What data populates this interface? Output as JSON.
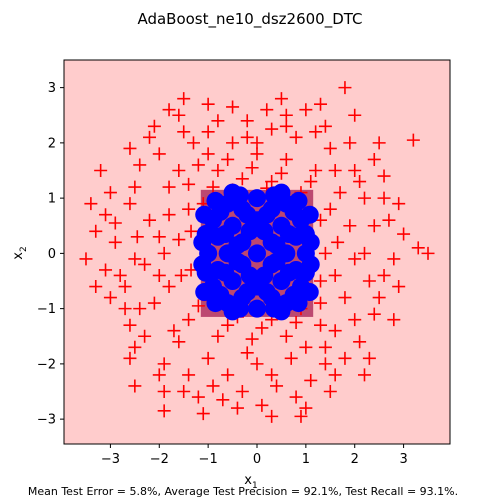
{
  "chart_data": {
    "type": "scatter",
    "title": "AdaBoost_ne10_dsz2600_DTC",
    "xlabel": "x",
    "xlabel_sub": "1",
    "ylabel": "x",
    "ylabel_sub": "2",
    "xlim": [
      -3.95,
      3.95
    ],
    "ylim": [
      -3.45,
      3.5
    ],
    "xticks": [
      -3,
      -2,
      -1,
      0,
      1,
      2,
      3
    ],
    "yticks": [
      -3,
      -2,
      -1,
      0,
      1,
      2,
      3
    ],
    "tick_labels_x": [
      "−3",
      "−2",
      "−1",
      "0",
      "1",
      "2",
      "3"
    ],
    "tick_labels_y": [
      "−3",
      "−2",
      "−1",
      "0",
      "1",
      "2",
      "3"
    ],
    "background_region_color": "#ffcccc",
    "inner_region_color": "#b03060",
    "series": [
      {
        "marker": "plus",
        "color": "#ff0000",
        "points": [
          [
            -3.5,
            -0.1
          ],
          [
            -3.4,
            0.9
          ],
          [
            -3.2,
            1.5
          ],
          [
            -3.0,
            -0.8
          ],
          [
            -3.3,
            0.4
          ],
          [
            -2.9,
            0.55
          ],
          [
            -2.6,
            -1.9
          ],
          [
            -2.5,
            -2.4
          ],
          [
            -2.2,
            2.1
          ],
          [
            -1.9,
            -2.85
          ],
          [
            -1.9,
            -2.5
          ],
          [
            -1.8,
            2.6
          ],
          [
            -1.5,
            -2.5
          ],
          [
            -1.0,
            2.7
          ],
          [
            -0.6,
            -2.2
          ],
          [
            -0.2,
            2.4
          ],
          [
            0.5,
            2.8
          ],
          [
            0.9,
            -2.95
          ],
          [
            1.2,
            2.2
          ],
          [
            1.8,
            3.0
          ],
          [
            2.4,
            1.7
          ],
          [
            3.2,
            2.05
          ],
          [
            3.0,
            0.35
          ],
          [
            3.5,
            0.0
          ],
          [
            2.8,
            -0.1
          ],
          [
            2.8,
            -1.2
          ],
          [
            2.4,
            -1.1
          ],
          [
            2.3,
            -1.9
          ],
          [
            1.6,
            -2.2
          ],
          [
            1.5,
            -2.5
          ],
          [
            0.1,
            -2.75
          ],
          [
            -0.4,
            -2.8
          ],
          [
            -1.1,
            -2.9
          ],
          [
            -2.3,
            -1.5
          ],
          [
            -2.6,
            -1.3
          ],
          [
            -2.9,
            0.2
          ],
          [
            -2.8,
            -0.4
          ],
          [
            -2.5,
            1.2
          ],
          [
            -2.0,
            1.8
          ],
          [
            -1.5,
            2.2
          ],
          [
            -0.5,
            2.0
          ],
          [
            0.3,
            2.25
          ],
          [
            0.8,
            2.1
          ],
          [
            1.5,
            1.9
          ],
          [
            2.0,
            1.5
          ],
          [
            2.2,
            1.0
          ],
          [
            2.4,
            0.5
          ],
          [
            2.3,
            -0.5
          ],
          [
            2.0,
            -1.2
          ],
          [
            1.4,
            -1.7
          ],
          [
            0.7,
            -1.9
          ],
          [
            -0.2,
            -1.8
          ],
          [
            -1.0,
            -1.9
          ],
          [
            -1.7,
            -1.4
          ],
          [
            -2.1,
            -0.9
          ],
          [
            -2.3,
            -0.2
          ],
          [
            -2.2,
            0.6
          ],
          [
            -1.8,
            1.2
          ],
          [
            -1.2,
            1.6
          ],
          [
            -0.6,
            1.7
          ],
          [
            0.0,
            1.8
          ],
          [
            0.6,
            1.7
          ],
          [
            1.2,
            1.5
          ],
          [
            1.7,
            1.1
          ],
          [
            1.9,
            0.5
          ],
          [
            2.0,
            -0.1
          ],
          [
            1.8,
            -0.8
          ],
          [
            1.3,
            -1.3
          ],
          [
            0.6,
            -1.5
          ],
          [
            -0.1,
            -1.55
          ],
          [
            -0.8,
            -1.5
          ],
          [
            -1.4,
            -1.2
          ],
          [
            -1.8,
            -0.6
          ],
          [
            -1.9,
            0.0
          ],
          [
            -1.8,
            0.7
          ],
          [
            -1.4,
            1.25
          ],
          [
            -0.8,
            1.5
          ],
          [
            -0.1,
            1.55
          ],
          [
            0.5,
            1.45
          ],
          [
            1.1,
            1.3
          ],
          [
            1.5,
            0.8
          ],
          [
            1.65,
            0.2
          ],
          [
            1.6,
            -0.4
          ],
          [
            1.3,
            -0.9
          ],
          [
            0.8,
            -1.25
          ],
          [
            0.1,
            -1.35
          ],
          [
            -0.6,
            -1.3
          ],
          [
            -1.2,
            -0.95
          ],
          [
            -1.55,
            -0.4
          ],
          [
            -1.6,
            0.25
          ],
          [
            -1.4,
            0.8
          ],
          [
            -0.9,
            1.2
          ],
          [
            -0.3,
            1.35
          ],
          [
            0.3,
            1.3
          ],
          [
            0.9,
            1.1
          ],
          [
            1.3,
            0.6
          ],
          [
            1.4,
            0.0
          ],
          [
            1.3,
            -0.5
          ],
          [
            0.9,
            -1.0
          ],
          [
            0.3,
            -1.2
          ],
          [
            -0.4,
            -1.15
          ],
          [
            -1.0,
            -0.85
          ],
          [
            -1.35,
            -0.3
          ],
          [
            -1.35,
            0.4
          ],
          [
            -1.1,
            0.9
          ],
          [
            -0.5,
            1.15
          ],
          [
            0.2,
            1.18
          ],
          [
            0.8,
            0.95
          ],
          [
            -2.7,
            -0.6
          ],
          [
            -2.6,
            0.9
          ],
          [
            -2.4,
            1.6
          ],
          [
            -2.1,
            2.3
          ],
          [
            -1.6,
            2.5
          ],
          [
            -1.3,
            2.0
          ],
          [
            -0.8,
            2.4
          ],
          [
            0.2,
            2.6
          ],
          [
            0.6,
            2.5
          ],
          [
            1.0,
            2.6
          ],
          [
            1.4,
            2.3
          ],
          [
            1.9,
            2.0
          ],
          [
            2.1,
            1.3
          ],
          [
            2.6,
            1.0
          ],
          [
            2.7,
            0.6
          ],
          [
            2.6,
            -0.4
          ],
          [
            2.5,
            -0.8
          ],
          [
            2.1,
            -1.6
          ],
          [
            1.8,
            -1.9
          ],
          [
            1.1,
            -2.3
          ],
          [
            0.4,
            -2.4
          ],
          [
            -0.3,
            -2.5
          ],
          [
            -0.9,
            -2.4
          ],
          [
            -1.4,
            -2.2
          ],
          [
            -1.9,
            -2.0
          ],
          [
            -2.4,
            -1.0
          ],
          [
            -2.5,
            -0.1
          ],
          [
            -2.45,
            0.3
          ],
          [
            -3.0,
            1.1
          ],
          [
            -2.7,
            -1.0
          ],
          [
            -2.0,
            -2.2
          ],
          [
            -1.2,
            -2.6
          ],
          [
            0.3,
            -2.2
          ],
          [
            0.8,
            -2.6
          ],
          [
            1.4,
            -2.0
          ],
          [
            2.2,
            -2.2
          ],
          [
            2.6,
            1.4
          ],
          [
            2.0,
            2.5
          ],
          [
            1.3,
            2.7
          ],
          [
            -0.2,
            2.1
          ],
          [
            -1.0,
            2.2
          ],
          [
            -2.6,
            1.9
          ],
          [
            -3.1,
            0.7
          ],
          [
            -3.1,
            -0.3
          ],
          [
            2.9,
            -0.6
          ],
          [
            2.9,
            0.9
          ],
          [
            2.2,
            0.0
          ],
          [
            -2.0,
            0.3
          ],
          [
            -2.0,
            -0.4
          ],
          [
            0.0,
            -2.0
          ],
          [
            0.0,
            2.0
          ],
          [
            1.0,
            -1.7
          ],
          [
            -1.0,
            1.8
          ],
          [
            1.6,
            1.5
          ],
          [
            -1.6,
            -1.6
          ],
          [
            1.6,
            -1.4
          ],
          [
            -1.6,
            1.5
          ],
          [
            2.5,
            2.0
          ],
          [
            -2.5,
            -1.7
          ],
          [
            1.0,
            -2.8
          ],
          [
            -1.5,
            2.8
          ],
          [
            -0.7,
            -2.65
          ],
          [
            0.6,
            2.3
          ],
          [
            -3.3,
            -0.6
          ],
          [
            3.3,
            0.1
          ],
          [
            0.3,
            -2.95
          ],
          [
            -0.5,
            2.65
          ]
        ]
      },
      {
        "marker": "circle",
        "color": "#0000ff",
        "points": [
          [
            0,
            0
          ],
          [
            0.3,
            0.2
          ],
          [
            -0.3,
            0.2
          ],
          [
            0.3,
            -0.2
          ],
          [
            -0.3,
            -0.2
          ],
          [
            0.6,
            0.0
          ],
          [
            -0.6,
            0.0
          ],
          [
            0.0,
            0.6
          ],
          [
            0.0,
            -0.6
          ],
          [
            0.5,
            0.5
          ],
          [
            -0.5,
            0.5
          ],
          [
            0.5,
            -0.5
          ],
          [
            -0.5,
            -0.5
          ],
          [
            0.8,
            0.3
          ],
          [
            -0.8,
            0.3
          ],
          [
            0.8,
            -0.3
          ],
          [
            -0.8,
            -0.3
          ],
          [
            0.3,
            0.8
          ],
          [
            -0.3,
            0.8
          ],
          [
            0.3,
            -0.8
          ],
          [
            -0.3,
            -0.8
          ],
          [
            0.9,
            0.6
          ],
          [
            -0.9,
            0.6
          ],
          [
            0.9,
            -0.6
          ],
          [
            -0.9,
            -0.6
          ],
          [
            0.6,
            0.9
          ],
          [
            -0.6,
            0.9
          ],
          [
            0.6,
            -0.9
          ],
          [
            -0.6,
            -0.9
          ],
          [
            1.0,
            0.0
          ],
          [
            -1.0,
            0.0
          ],
          [
            0.0,
            1.0
          ],
          [
            0.0,
            -1.0
          ],
          [
            1.0,
            0.35
          ],
          [
            -1.05,
            0.35
          ],
          [
            1.0,
            -0.35
          ],
          [
            -1.05,
            -0.35
          ],
          [
            0.35,
            1.05
          ],
          [
            -0.35,
            1.05
          ],
          [
            0.35,
            -1.0
          ],
          [
            -0.35,
            -1.0
          ],
          [
            0.75,
            0.75
          ],
          [
            -0.75,
            0.75
          ],
          [
            0.75,
            -0.75
          ],
          [
            -0.75,
            -0.75
          ],
          [
            0.15,
            0.4
          ],
          [
            -0.15,
            0.4
          ],
          [
            0.15,
            -0.4
          ],
          [
            -0.15,
            -0.4
          ],
          [
            0.4,
            0.15
          ],
          [
            -0.4,
            0.15
          ],
          [
            0.4,
            -0.15
          ],
          [
            -0.4,
            -0.15
          ],
          [
            0.65,
            0.35
          ],
          [
            -0.65,
            0.35
          ],
          [
            0.65,
            -0.35
          ],
          [
            -0.65,
            -0.35
          ],
          [
            0.2,
            0.7
          ],
          [
            -0.2,
            0.7
          ],
          [
            0.2,
            -0.7
          ],
          [
            -0.2,
            -0.7
          ],
          [
            1.08,
            0.7
          ],
          [
            -1.08,
            0.7
          ],
          [
            1.08,
            -0.7
          ],
          [
            -1.08,
            -0.7
          ],
          [
            0.5,
            1.1
          ],
          [
            -0.5,
            1.1
          ],
          [
            0.5,
            -1.05
          ],
          [
            -0.5,
            -1.05
          ],
          [
            1.1,
            0.2
          ],
          [
            -1.12,
            0.2
          ],
          [
            1.1,
            -0.2
          ],
          [
            -1.12,
            -0.2
          ],
          [
            0.85,
            0.95
          ],
          [
            -0.85,
            0.95
          ],
          [
            0.85,
            -0.9
          ],
          [
            -0.85,
            -0.9
          ]
        ]
      }
    ],
    "footer": "Mean Test Error = 5.8%, Average Test Precision = 92.1%, Test Recall = 93.1%."
  }
}
